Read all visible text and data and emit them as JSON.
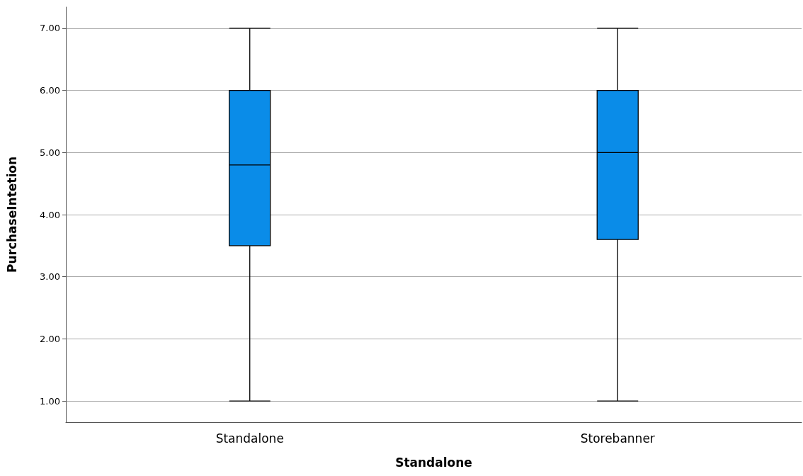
{
  "chart_data": {
    "type": "box",
    "xlabel": "Standalone",
    "ylabel": "PurchaseIntetion",
    "categories": [
      "Standalone",
      "Storebanner"
    ],
    "boxes": [
      {
        "low": 1,
        "q1": 3.5,
        "median": 4.8,
        "q3": 6,
        "high": 7
      },
      {
        "low": 1,
        "q1": 3.6,
        "median": 5,
        "q3": 6,
        "high": 7
      }
    ],
    "color": "#0a8ce8",
    "ylim": [
      0.66,
      7.34
    ],
    "yticks": [
      {
        "value": 1,
        "label": "1.00"
      },
      {
        "value": 2,
        "label": "2.00"
      },
      {
        "value": 3,
        "label": "3.00"
      },
      {
        "value": 4,
        "label": "4.00"
      },
      {
        "value": 5,
        "label": "5.00"
      },
      {
        "value": 6,
        "label": "6.00"
      },
      {
        "value": 7,
        "label": "7.00"
      }
    ],
    "grid": "y"
  }
}
